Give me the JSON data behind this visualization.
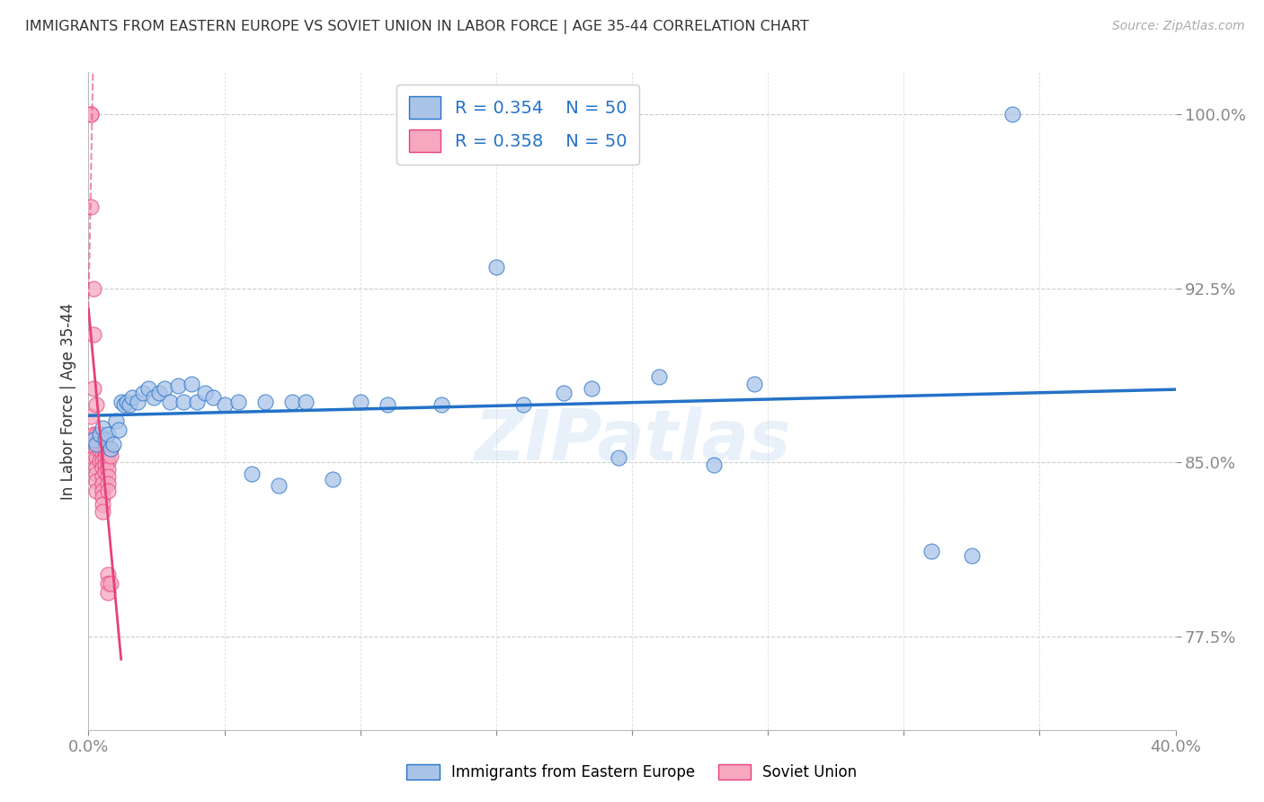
{
  "title": "IMMIGRANTS FROM EASTERN EUROPE VS SOVIET UNION IN LABOR FORCE | AGE 35-44 CORRELATION CHART",
  "source": "Source: ZipAtlas.com",
  "ylabel": "In Labor Force | Age 35-44",
  "xlim": [
    0.0,
    0.4
  ],
  "ylim": [
    0.735,
    1.018
  ],
  "xticks": [
    0.0,
    0.05,
    0.1,
    0.15,
    0.2,
    0.25,
    0.3,
    0.35,
    0.4
  ],
  "xticklabels": [
    "0.0%",
    "",
    "",
    "",
    "",
    "",
    "",
    "",
    "40.0%"
  ],
  "ytick_positions": [
    0.775,
    0.85,
    0.925,
    1.0
  ],
  "ytick_labels": [
    "77.5%",
    "85.0%",
    "92.5%",
    "100.0%"
  ],
  "blue_color": "#aac4e8",
  "pink_color": "#f5a8c0",
  "blue_line_color": "#2472c8",
  "pink_line_color": "#e8407a",
  "blue_x": [
    0.002,
    0.003,
    0.004,
    0.005,
    0.006,
    0.007,
    0.008,
    0.009,
    0.01,
    0.011,
    0.012,
    0.013,
    0.014,
    0.015,
    0.016,
    0.018,
    0.02,
    0.022,
    0.024,
    0.026,
    0.028,
    0.03,
    0.033,
    0.035,
    0.038,
    0.04,
    0.043,
    0.046,
    0.05,
    0.055,
    0.06,
    0.065,
    0.07,
    0.075,
    0.08,
    0.09,
    0.1,
    0.11,
    0.13,
    0.15,
    0.16,
    0.175,
    0.185,
    0.195,
    0.21,
    0.23,
    0.245,
    0.31,
    0.325,
    0.34
  ],
  "blue_y": [
    0.86,
    0.858,
    0.862,
    0.865,
    0.86,
    0.862,
    0.856,
    0.858,
    0.868,
    0.864,
    0.876,
    0.875,
    0.876,
    0.875,
    0.878,
    0.876,
    0.88,
    0.882,
    0.878,
    0.88,
    0.882,
    0.876,
    0.883,
    0.876,
    0.884,
    0.876,
    0.88,
    0.878,
    0.875,
    0.876,
    0.845,
    0.876,
    0.84,
    0.876,
    0.876,
    0.843,
    0.876,
    0.875,
    0.875,
    0.934,
    0.875,
    0.88,
    0.882,
    0.852,
    0.887,
    0.849,
    0.884,
    0.812,
    0.81,
    1.0
  ],
  "pink_x": [
    0.001,
    0.001,
    0.001,
    0.001,
    0.002,
    0.002,
    0.002,
    0.002,
    0.002,
    0.003,
    0.003,
    0.003,
    0.003,
    0.003,
    0.003,
    0.003,
    0.003,
    0.004,
    0.004,
    0.004,
    0.004,
    0.005,
    0.005,
    0.005,
    0.005,
    0.005,
    0.005,
    0.005,
    0.005,
    0.005,
    0.005,
    0.005,
    0.006,
    0.006,
    0.006,
    0.006,
    0.006,
    0.007,
    0.007,
    0.007,
    0.007,
    0.007,
    0.007,
    0.007,
    0.007,
    0.007,
    0.007,
    0.008,
    0.008,
    0.008
  ],
  "pink_y": [
    1.0,
    1.0,
    0.96,
    0.87,
    0.925,
    0.905,
    0.882,
    0.862,
    0.852,
    0.875,
    0.862,
    0.856,
    0.852,
    0.848,
    0.845,
    0.842,
    0.838,
    0.862,
    0.858,
    0.855,
    0.851,
    0.86,
    0.857,
    0.854,
    0.851,
    0.848,
    0.844,
    0.841,
    0.838,
    0.835,
    0.832,
    0.829,
    0.858,
    0.855,
    0.852,
    0.849,
    0.846,
    0.856,
    0.853,
    0.85,
    0.847,
    0.844,
    0.841,
    0.838,
    0.802,
    0.798,
    0.794,
    0.856,
    0.853,
    0.798
  ],
  "pink_line_x_start": 0.0,
  "pink_line_x_end": 0.012,
  "pink_line_style": "solid",
  "watermark": "ZIPatlas",
  "legend_R_blue": "R = 0.354",
  "legend_N_blue": "N = 50",
  "legend_R_pink": "R = 0.358",
  "legend_N_pink": "N = 50",
  "legend_label_blue": "Immigrants from Eastern Europe",
  "legend_label_pink": "Soviet Union"
}
